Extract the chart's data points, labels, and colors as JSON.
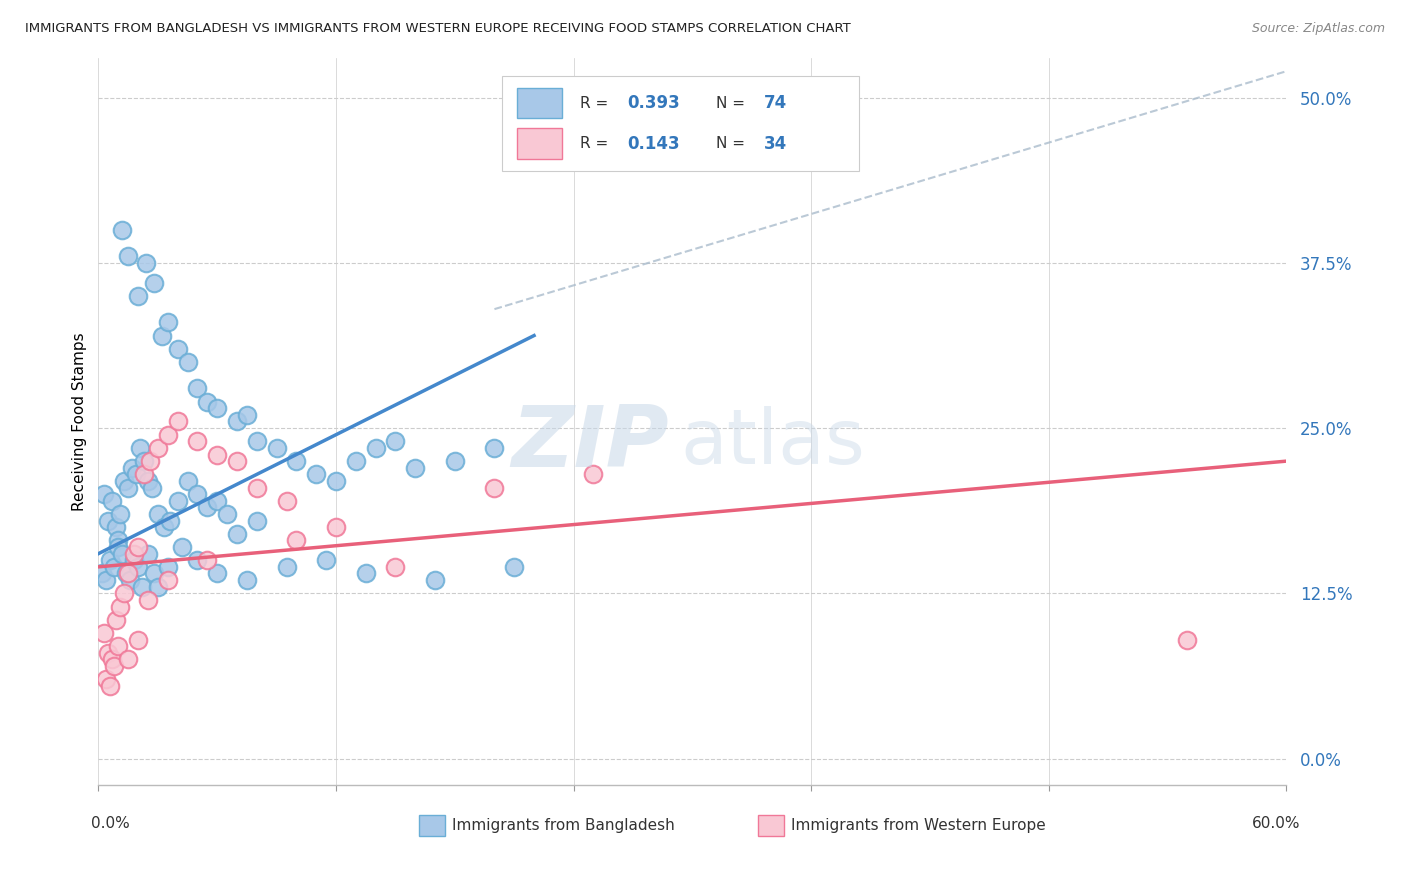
{
  "title": "IMMIGRANTS FROM BANGLADESH VS IMMIGRANTS FROM WESTERN EUROPE RECEIVING FOOD STAMPS CORRELATION CHART",
  "source": "Source: ZipAtlas.com",
  "ylabel": "Receiving Food Stamps",
  "ytick_vals": [
    0.0,
    12.5,
    25.0,
    37.5,
    50.0
  ],
  "xlim": [
    0.0,
    60.0
  ],
  "ylim": [
    -2.0,
    53.0
  ],
  "color_blue": "#a8c8e8",
  "color_blue_edge": "#6aaed6",
  "color_pink": "#f9c8d4",
  "color_pink_edge": "#f07898",
  "color_blue_line": "#4488cc",
  "color_pink_line": "#e8607a",
  "color_diag": "#aabccc",
  "watermark_zip": "ZIP",
  "watermark_atlas": "atlas",
  "blue_x": [
    1.2,
    1.5,
    2.0,
    2.4,
    2.8,
    3.2,
    3.5,
    4.0,
    4.5,
    5.0,
    5.5,
    6.0,
    7.0,
    7.5,
    8.0,
    9.0,
    10.0,
    11.0,
    12.0,
    13.0,
    14.0,
    15.0,
    16.0,
    18.0,
    20.0,
    0.3,
    0.5,
    0.7,
    0.9,
    1.0,
    1.1,
    1.3,
    1.5,
    1.7,
    1.9,
    2.1,
    2.3,
    2.5,
    2.7,
    3.0,
    3.3,
    3.6,
    4.0,
    4.5,
    5.0,
    5.5,
    6.0,
    6.5,
    7.0,
    8.0,
    0.2,
    0.4,
    0.6,
    0.8,
    1.0,
    1.2,
    1.4,
    1.6,
    1.8,
    2.0,
    2.2,
    2.5,
    2.8,
    3.0,
    3.5,
    4.2,
    5.0,
    6.0,
    7.5,
    9.5,
    11.5,
    13.5,
    17.0,
    21.0
  ],
  "blue_y": [
    40.0,
    38.0,
    35.0,
    37.5,
    36.0,
    32.0,
    33.0,
    31.0,
    30.0,
    28.0,
    27.0,
    26.5,
    25.5,
    26.0,
    24.0,
    23.5,
    22.5,
    21.5,
    21.0,
    22.5,
    23.5,
    24.0,
    22.0,
    22.5,
    23.5,
    20.0,
    18.0,
    19.5,
    17.5,
    16.5,
    18.5,
    21.0,
    20.5,
    22.0,
    21.5,
    23.5,
    22.5,
    21.0,
    20.5,
    18.5,
    17.5,
    18.0,
    19.5,
    21.0,
    20.0,
    19.0,
    19.5,
    18.5,
    17.0,
    18.0,
    14.0,
    13.5,
    15.0,
    14.5,
    16.0,
    15.5,
    14.0,
    13.5,
    15.0,
    14.5,
    13.0,
    15.5,
    14.0,
    13.0,
    14.5,
    16.0,
    15.0,
    14.0,
    13.5,
    14.5,
    15.0,
    14.0,
    13.5,
    14.5
  ],
  "pink_x": [
    0.3,
    0.5,
    0.7,
    0.9,
    1.1,
    1.3,
    1.5,
    1.8,
    2.0,
    2.3,
    2.6,
    3.0,
    3.5,
    4.0,
    5.0,
    6.0,
    7.0,
    8.0,
    9.5,
    12.0,
    15.0,
    20.0,
    25.0,
    55.0,
    0.4,
    0.6,
    0.8,
    1.0,
    1.5,
    2.0,
    2.5,
    3.5,
    5.5,
    10.0
  ],
  "pink_y": [
    9.5,
    8.0,
    7.5,
    10.5,
    11.5,
    12.5,
    14.0,
    15.5,
    16.0,
    21.5,
    22.5,
    23.5,
    24.5,
    25.5,
    24.0,
    23.0,
    22.5,
    20.5,
    19.5,
    17.5,
    14.5,
    20.5,
    21.5,
    9.0,
    6.0,
    5.5,
    7.0,
    8.5,
    7.5,
    9.0,
    12.0,
    13.5,
    15.0,
    16.5
  ],
  "blue_line_x0": 0.0,
  "blue_line_x1": 22.0,
  "blue_line_y0": 15.5,
  "blue_line_y1": 32.0,
  "pink_line_x0": 0.0,
  "pink_line_x1": 60.0,
  "pink_line_y0": 14.5,
  "pink_line_y1": 22.5,
  "diag_x0": 20.0,
  "diag_x1": 60.0,
  "diag_y0": 34.0,
  "diag_y1": 52.0
}
